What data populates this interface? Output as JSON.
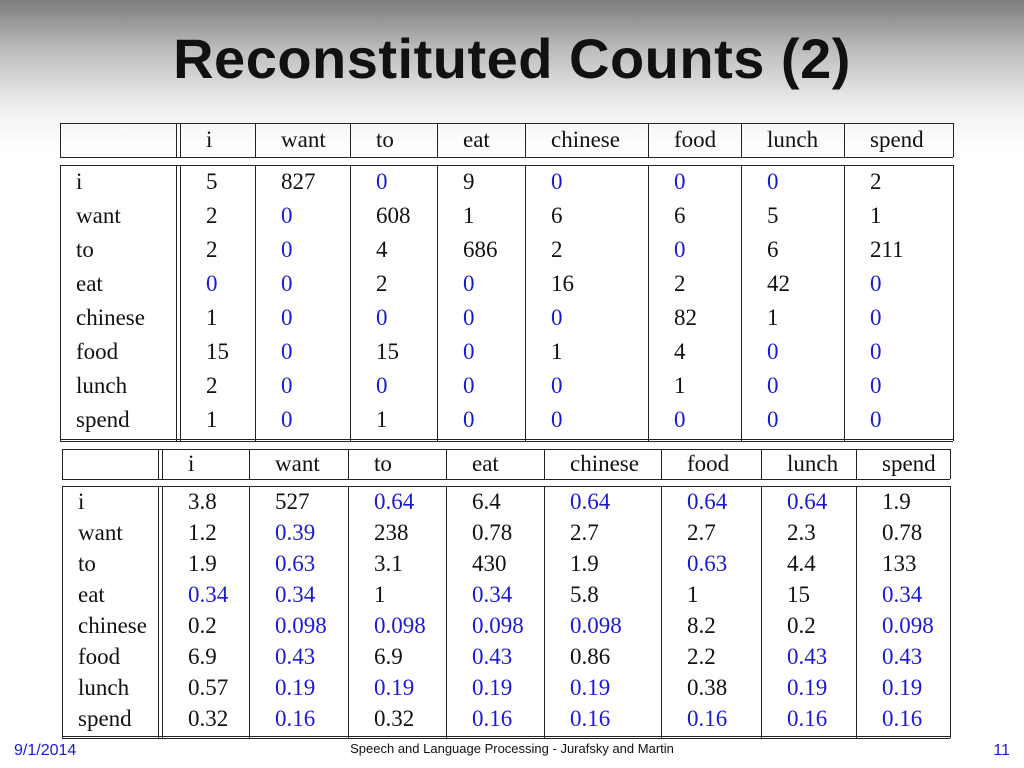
{
  "slide": {
    "title": "Reconstituted Counts (2)",
    "date": "9/1/2014",
    "credit": "Speech and Language Processing - Jurafsky and Martin",
    "page": "11"
  },
  "colors": {
    "zero_highlight": "#1a1ad6",
    "text": "#111111"
  },
  "counts_table": {
    "columns": [
      "i",
      "want",
      "to",
      "eat",
      "chinese",
      "food",
      "lunch",
      "spend"
    ],
    "rows": [
      {
        "label": "i",
        "values": [
          "5",
          "827",
          "0",
          "9",
          "0",
          "0",
          "0",
          "2"
        ]
      },
      {
        "label": "want",
        "values": [
          "2",
          "0",
          "608",
          "1",
          "6",
          "6",
          "5",
          "1"
        ]
      },
      {
        "label": "to",
        "values": [
          "2",
          "0",
          "4",
          "686",
          "2",
          "0",
          "6",
          "211"
        ]
      },
      {
        "label": "eat",
        "values": [
          "0",
          "0",
          "2",
          "0",
          "16",
          "2",
          "42",
          "0"
        ]
      },
      {
        "label": "chinese",
        "values": [
          "1",
          "0",
          "0",
          "0",
          "0",
          "82",
          "1",
          "0"
        ]
      },
      {
        "label": "food",
        "values": [
          "15",
          "0",
          "15",
          "0",
          "1",
          "4",
          "0",
          "0"
        ]
      },
      {
        "label": "lunch",
        "values": [
          "2",
          "0",
          "0",
          "0",
          "0",
          "1",
          "0",
          "0"
        ]
      },
      {
        "label": "spend",
        "values": [
          "1",
          "0",
          "1",
          "0",
          "0",
          "0",
          "0",
          "0"
        ]
      }
    ]
  },
  "reconstituted_table": {
    "columns": [
      "i",
      "want",
      "to",
      "eat",
      "chinese",
      "food",
      "lunch",
      "spend"
    ],
    "rows": [
      {
        "label": "i",
        "values": [
          "3.8",
          "527",
          "0.64",
          "6.4",
          "0.64",
          "0.64",
          "0.64",
          "1.9"
        ]
      },
      {
        "label": "want",
        "values": [
          "1.2",
          "0.39",
          "238",
          "0.78",
          "2.7",
          "2.7",
          "2.3",
          "0.78"
        ]
      },
      {
        "label": "to",
        "values": [
          "1.9",
          "0.63",
          "3.1",
          "430",
          "1.9",
          "0.63",
          "4.4",
          "133"
        ]
      },
      {
        "label": "eat",
        "values": [
          "0.34",
          "0.34",
          "1",
          "0.34",
          "5.8",
          "1",
          "15",
          "0.34"
        ]
      },
      {
        "label": "chinese",
        "values": [
          "0.2",
          "0.098",
          "0.098",
          "0.098",
          "0.098",
          "8.2",
          "0.2",
          "0.098"
        ]
      },
      {
        "label": "food",
        "values": [
          "6.9",
          "0.43",
          "6.9",
          "0.43",
          "0.86",
          "2.2",
          "0.43",
          "0.43"
        ]
      },
      {
        "label": "lunch",
        "values": [
          "0.57",
          "0.19",
          "0.19",
          "0.19",
          "0.19",
          "0.38",
          "0.19",
          "0.19"
        ]
      },
      {
        "label": "spend",
        "values": [
          "0.32",
          "0.16",
          "0.32",
          "0.16",
          "0.16",
          "0.16",
          "0.16",
          "0.16"
        ]
      }
    ],
    "highlighted": [
      [
        0,
        2
      ],
      [
        0,
        4
      ],
      [
        0,
        5
      ],
      [
        0,
        6
      ],
      [
        1,
        1
      ],
      [
        2,
        1
      ],
      [
        2,
        5
      ],
      [
        3,
        0
      ],
      [
        3,
        1
      ],
      [
        3,
        3
      ],
      [
        3,
        7
      ],
      [
        4,
        1
      ],
      [
        4,
        2
      ],
      [
        4,
        3
      ],
      [
        4,
        4
      ],
      [
        4,
        7
      ],
      [
        5,
        1
      ],
      [
        5,
        3
      ],
      [
        5,
        6
      ],
      [
        5,
        7
      ],
      [
        6,
        1
      ],
      [
        6,
        2
      ],
      [
        6,
        3
      ],
      [
        6,
        4
      ],
      [
        6,
        6
      ],
      [
        6,
        7
      ],
      [
        7,
        1
      ],
      [
        7,
        3
      ],
      [
        7,
        4
      ],
      [
        7,
        5
      ],
      [
        7,
        6
      ],
      [
        7,
        7
      ]
    ]
  }
}
